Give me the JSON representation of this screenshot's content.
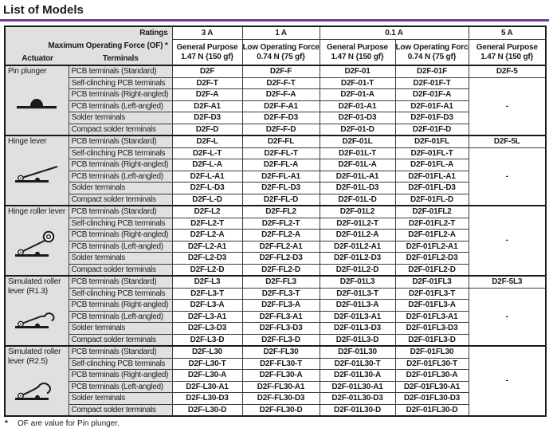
{
  "page": {
    "title": "List of Models",
    "accent_color": "#7239a1",
    "footnote_marker": "*",
    "footnote_text": "OF are value for Pin plunger."
  },
  "table": {
    "corner": {
      "ratings_label": "Ratings",
      "force_label": "Maximum Operating Force (OF) *",
      "actuator_label": "Actuator",
      "terminals_label": "Terminals"
    },
    "ratings": [
      {
        "label": "3 A",
        "span": 1
      },
      {
        "label": "1 A",
        "span": 1
      },
      {
        "label": "0.1 A",
        "span": 2
      },
      {
        "label": "5 A",
        "span": 1
      }
    ],
    "force_headers": [
      {
        "line1": "General Purpose",
        "line2": "1.47 N {150 gf}"
      },
      {
        "line1": "Low Operating Force",
        "line2": "0.74 N {75 gf}"
      },
      {
        "line1": "General Purpose",
        "line2": "1.47 N {150 gf}"
      },
      {
        "line1": "Low Operating Force",
        "line2": "0.74 N {75 gf}"
      },
      {
        "line1": "General Purpose",
        "line2": "1.47 N {150 gf}"
      }
    ],
    "terminal_types": [
      "PCB terminals (Standard)",
      "Self-clinching PCB terminals",
      "PCB terminals (Right-angled)",
      "PCB terminals (Left-angled)",
      "Solder terminals",
      "Compact solder terminals"
    ],
    "sections": [
      {
        "actuator": "Pin plunger",
        "icon": "pin-plunger",
        "rows": [
          [
            "D2F",
            "D2F-F",
            "D2F-01",
            "D2F-01F"
          ],
          [
            "D2F-T",
            "D2F-F-T",
            "D2F-01-T",
            "D2F-01F-T"
          ],
          [
            "D2F-A",
            "D2F-F-A",
            "D2F-01-A",
            "D2F-01F-A"
          ],
          [
            "D2F-A1",
            "D2F-F-A1",
            "D2F-01-A1",
            "D2F-01F-A1"
          ],
          [
            "D2F-D3",
            "D2F-F-D3",
            "D2F-01-D3",
            "D2F-01F-D3"
          ],
          [
            "D2F-D",
            "D2F-F-D",
            "D2F-01-D",
            "D2F-01F-D"
          ]
        ],
        "col5_top": "D2F-5",
        "col5_merged": "-"
      },
      {
        "actuator": "Hinge lever",
        "icon": "hinge-lever",
        "rows": [
          [
            "D2F-L",
            "D2F-FL",
            "D2F-01L",
            "D2F-01FL"
          ],
          [
            "D2F-L-T",
            "D2F-FL-T",
            "D2F-01L-T",
            "D2F-01FL-T"
          ],
          [
            "D2F-L-A",
            "D2F-FL-A",
            "D2F-01L-A",
            "D2F-01FL-A"
          ],
          [
            "D2F-L-A1",
            "D2F-FL-A1",
            "D2F-01L-A1",
            "D2F-01FL-A1"
          ],
          [
            "D2F-L-D3",
            "D2F-FL-D3",
            "D2F-01L-D3",
            "D2F-01FL-D3"
          ],
          [
            "D2F-L-D",
            "D2F-FL-D",
            "D2F-01L-D",
            "D2F-01FL-D"
          ]
        ],
        "col5_top": "D2F-5L",
        "col5_merged": "-"
      },
      {
        "actuator": "Hinge roller lever",
        "icon": "hinge-roller-lever",
        "rows": [
          [
            "D2F-L2",
            "D2F-FL2",
            "D2F-01L2",
            "D2F-01FL2"
          ],
          [
            "D2F-L2-T",
            "D2F-FL2-T",
            "D2F-01L2-T",
            "D2F-01FL2-T"
          ],
          [
            "D2F-L2-A",
            "D2F-FL2-A",
            "D2F-01L2-A",
            "D2F-01FL2-A"
          ],
          [
            "D2F-L2-A1",
            "D2F-FL2-A1",
            "D2F-01L2-A1",
            "D2F-01FL2-A1"
          ],
          [
            "D2F-L2-D3",
            "D2F-FL2-D3",
            "D2F-01L2-D3",
            "D2F-01FL2-D3"
          ],
          [
            "D2F-L2-D",
            "D2F-FL2-D",
            "D2F-01L2-D",
            "D2F-01FL2-D"
          ]
        ],
        "col5_top": null,
        "col5_merged": "-"
      },
      {
        "actuator": "Simulated roller lever (R1.3)",
        "icon": "simulated-roller-lever-r1-3",
        "rows": [
          [
            "D2F-L3",
            "D2F-FL3",
            "D2F-01L3",
            "D2F-01FL3"
          ],
          [
            "D2F-L3-T",
            "D2F-FL3-T",
            "D2F-01L3-T",
            "D2F-01FL3-T"
          ],
          [
            "D2F-L3-A",
            "D2F-FL3-A",
            "D2F-01L3-A",
            "D2F-01FL3-A"
          ],
          [
            "D2F-L3-A1",
            "D2F-FL3-A1",
            "D2F-01L3-A1",
            "D2F-01FL3-A1"
          ],
          [
            "D2F-L3-D3",
            "D2F-FL3-D3",
            "D2F-01L3-D3",
            "D2F-01FL3-D3"
          ],
          [
            "D2F-L3-D",
            "D2F-FL3-D",
            "D2F-01L3-D",
            "D2F-01FL3-D"
          ]
        ],
        "col5_top": "D2F-5L3",
        "col5_merged": "-"
      },
      {
        "actuator": "Simulated roller lever (R2.5)",
        "icon": "simulated-roller-lever-r2-5",
        "rows": [
          [
            "D2F-L30",
            "D2F-FL30",
            "D2F-01L30",
            "D2F-01FL30"
          ],
          [
            "D2F-L30-T",
            "D2F-FL30-T",
            "D2F-01L30-T",
            "D2F-01FL30-T"
          ],
          [
            "D2F-L30-A",
            "D2F-FL30-A",
            "D2F-01L30-A",
            "D2F-01FL30-A"
          ],
          [
            "D2F-L30-A1",
            "D2F-FL30-A1",
            "D2F-01L30-A1",
            "D2F-01FL30-A1"
          ],
          [
            "D2F-L30-D3",
            "D2F-FL30-D3",
            "D2F-01L30-D3",
            "D2F-01FL30-D3"
          ],
          [
            "D2F-L30-D",
            "D2F-FL30-D",
            "D2F-01L30-D",
            "D2F-01FL30-D"
          ]
        ],
        "col5_top": null,
        "col5_merged": "-"
      }
    ]
  }
}
